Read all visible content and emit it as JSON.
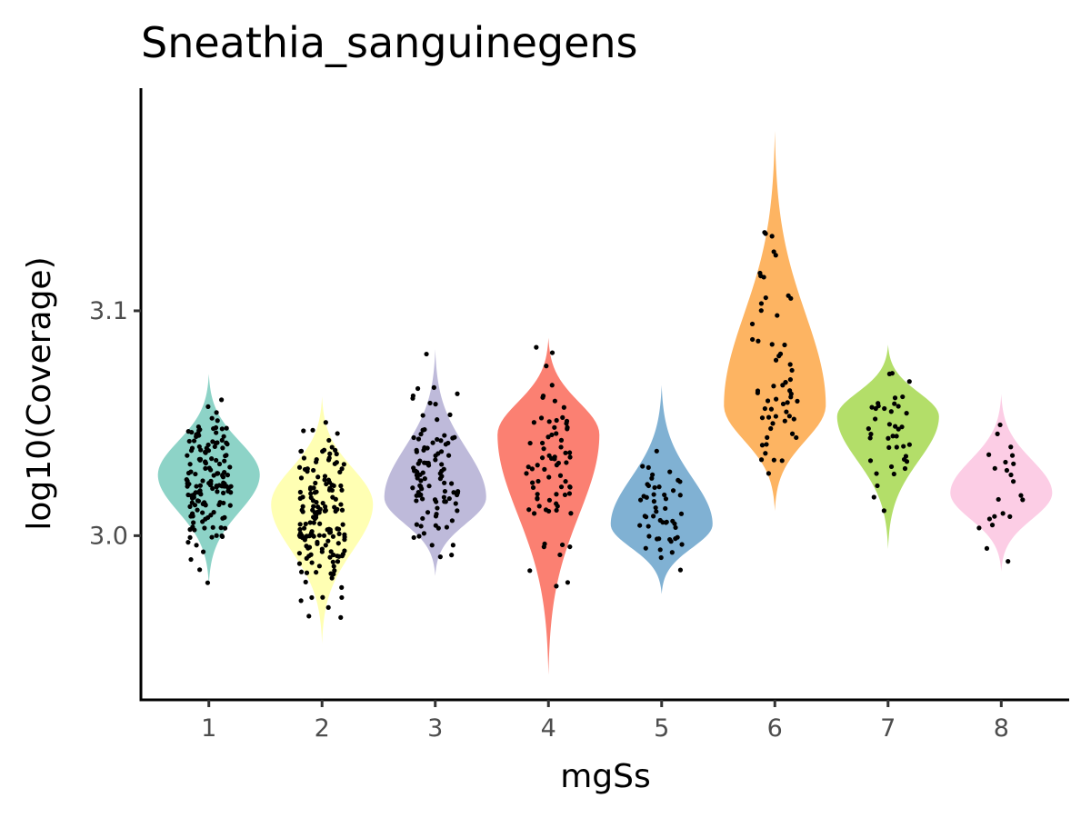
{
  "chart_data": {
    "type": "violin",
    "title": "Sneathia_sanguinegens",
    "xlabel": "mgSs",
    "ylabel": "log10(Coverage)",
    "categories": [
      "1",
      "2",
      "3",
      "4",
      "5",
      "6",
      "7",
      "8"
    ],
    "yticks": [
      3.0,
      3.1
    ],
    "ytick_labels": [
      "3.0",
      "3.1"
    ],
    "ylim": [
      2.927,
      3.199
    ],
    "grid": false,
    "legend": "none",
    "series": [
      {
        "category": "1",
        "color": "#8DD3C7",
        "min": 2.978,
        "max": 3.072,
        "mode": 3.027,
        "n": 150
      },
      {
        "category": "2",
        "color": "#FFFFB3",
        "min": 2.952,
        "max": 3.062,
        "mode": 3.014,
        "n": 160
      },
      {
        "category": "3",
        "color": "#BEBADA",
        "min": 2.982,
        "max": 3.083,
        "mode": 3.017,
        "n": 100
      },
      {
        "category": "4",
        "color": "#FB8072",
        "min": 2.938,
        "max": 3.088,
        "mode": 3.045,
        "n": 75
      },
      {
        "category": "5",
        "color": "#80B1D3",
        "min": 2.974,
        "max": 3.067,
        "mode": 3.005,
        "n": 50
      },
      {
        "category": "6",
        "color": "#FDB462",
        "min": 3.011,
        "max": 3.18,
        "mode": 3.058,
        "n": 60
      },
      {
        "category": "7",
        "color": "#B3DE69",
        "min": 2.994,
        "max": 3.085,
        "mode": 3.053,
        "n": 40
      },
      {
        "category": "8",
        "color": "#FCCDE5",
        "min": 2.984,
        "max": 3.063,
        "mode": 3.019,
        "n": 22
      }
    ]
  }
}
